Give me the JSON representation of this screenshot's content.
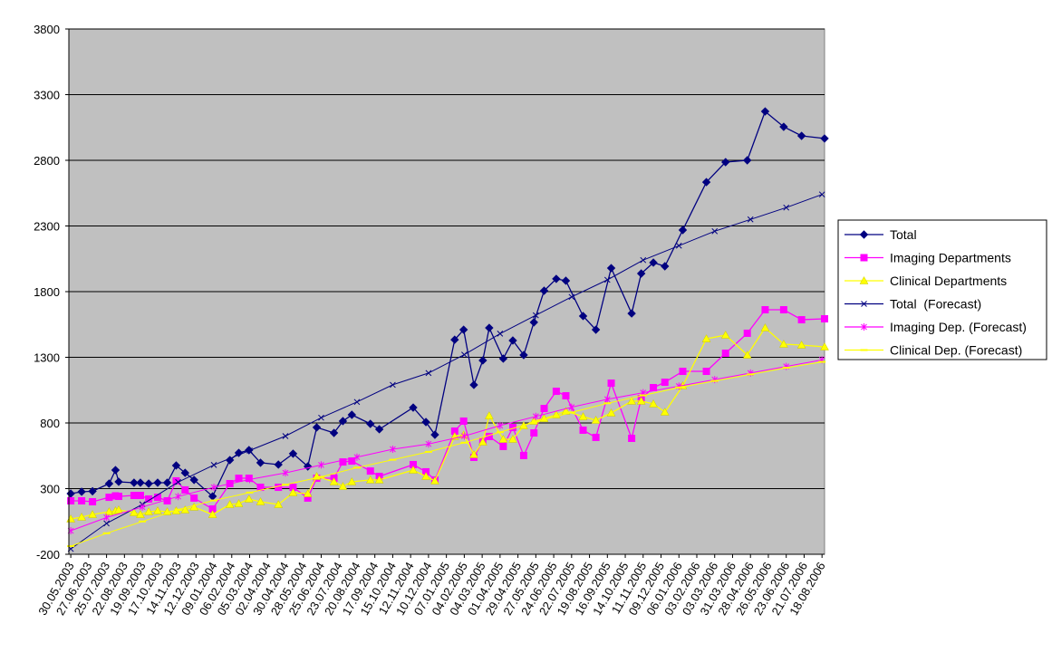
{
  "chart_data": {
    "type": "line",
    "xlim": [
      "27.05.2003",
      "22.08.2006"
    ],
    "ylim": [
      -200,
      3800
    ],
    "yticks": [
      -200,
      300,
      800,
      1300,
      1800,
      2300,
      2800,
      3300,
      3800
    ],
    "xticks": [
      "30.05.2003",
      "27.06.2003",
      "25.07.2003",
      "22.08.2003",
      "19.09.2003",
      "17.10.2003",
      "14.11.2003",
      "12.12.2003",
      "09.01.2004",
      "06.02.2004",
      "05.03.2004",
      "02.04.2004",
      "30.04.2004",
      "28.05.2004",
      "25.06.2004",
      "23.07.2004",
      "20.08.2004",
      "17.09.2004",
      "15.10.2004",
      "12.11.2004",
      "10.12.2004",
      "07.01.2005",
      "04.02.2005",
      "04.03.2005",
      "01.04.2005",
      "29.04.2005",
      "27.05.2005",
      "24.06.2005",
      "22.07.2005",
      "19.08.2005",
      "16.09.2005",
      "14.10.2005",
      "11.11.2005",
      "09.12.2005",
      "06.01.2006",
      "03.02.2006",
      "03.03.2006",
      "31.03.2006",
      "28.04.2006",
      "26.05.2006",
      "23.06.2006",
      "21.07.2006",
      "18.08.2006"
    ],
    "grid": true,
    "legend": "right",
    "x": [
      "30.05.2003",
      "16.06.2003",
      "03.07.2003",
      "29.07.2003",
      "08.08.2003",
      "13.08.2003",
      "06.09.2003",
      "16.09.2003",
      "29.09.2003",
      "13.10.2003",
      "28.10.2003",
      "11.11.2003",
      "25.11.2003",
      "09.12.2003",
      "07.01.2004",
      "03.02.2004",
      "17.02.2004",
      "04.03.2004",
      "22.03.2004",
      "19.04.2004",
      "12.05.2004",
      "04.06.2004",
      "18.06.2004",
      "15.07.2004",
      "29.07.2004",
      "12.08.2004",
      "10.09.2004",
      "24.09.2004",
      "16.11.2004",
      "06.12.2004",
      "20.12.2004",
      "20.01.2005",
      "03.02.2005",
      "19.02.2005",
      "05.03.2005",
      "15.03.2005",
      "06.04.2005",
      "21.04.2005",
      "08.05.2005",
      "24.05.2005",
      "09.06.2005",
      "28.06.2005",
      "13.07.2005",
      "09.08.2005",
      "29.08.2005",
      "22.09.2005",
      "24.10.2005",
      "08.11.2005",
      "27.11.2005",
      "15.12.2005",
      "12.01.2006",
      "18.02.2006",
      "20.03.2006",
      "23.04.2006",
      "21.05.2006",
      "19.06.2006",
      "17.07.2006",
      "22.08.2006"
    ],
    "series": [
      {
        "name": "Total",
        "color": "#000080",
        "marker": "diamond",
        "values": [
          262,
          276,
          280,
          338,
          441,
          352,
          345,
          345,
          338,
          345,
          345,
          476,
          420,
          366,
          241,
          517,
          572,
          593,
          497,
          483,
          566,
          469,
          766,
          724,
          814,
          862,
          793,
          752,
          917,
          807,
          710,
          1434,
          1510,
          1090,
          1276,
          1524,
          1290,
          1428,
          1317,
          1566,
          1807,
          1897,
          1883,
          1614,
          1510,
          1979,
          1634,
          1938,
          2021,
          1993,
          2269,
          2634,
          2786,
          2800,
          3172,
          3055,
          2986,
          2966
        ]
      },
      {
        "name": "Imaging Departments",
        "color": "#ff00ff",
        "marker": "square",
        "values": [
          207,
          207,
          200,
          234,
          245,
          241,
          248,
          248,
          221,
          234,
          207,
          359,
          290,
          228,
          145,
          338,
          379,
          379,
          310,
          310,
          310,
          228,
          379,
          379,
          503,
          510,
          434,
          393,
          483,
          428,
          366,
          738,
          814,
          538,
          662,
          697,
          621,
          766,
          552,
          724,
          910,
          1041,
          1007,
          745,
          690,
          1103,
          683,
          986,
          1069,
          1110,
          1193,
          1193,
          1331,
          1483,
          1662,
          1662,
          1586,
          1593
        ]
      },
      {
        "name": "Clinical Departments",
        "color": "#ffff00",
        "marker": "triangle",
        "values": [
          69,
          83,
          103,
          124,
          131,
          138,
          117,
          103,
          124,
          131,
          124,
          131,
          138,
          159,
          103,
          179,
          186,
          221,
          200,
          179,
          269,
          262,
          393,
          352,
          317,
          352,
          366,
          366,
          441,
          393,
          359,
          697,
          710,
          559,
          655,
          855,
          676,
          676,
          779,
          814,
          834,
          862,
          890,
          848,
          821,
          876,
          966,
          966,
          945,
          883,
          1083,
          1441,
          1469,
          1317,
          1524,
          1400,
          1393,
          1379
        ]
      },
      {
        "name": "Total  (Forecast)",
        "color": "#000080",
        "marker": "x",
        "x": [
          "30.05.2003",
          "25.07.2003",
          "19.09.2003",
          "14.11.2003",
          "09.01.2004",
          "05.03.2004",
          "30.04.2004",
          "25.06.2004",
          "20.08.2004",
          "15.10.2004",
          "10.12.2004",
          "04.02.2005",
          "01.04.2005",
          "27.05.2005",
          "22.07.2005",
          "16.09.2005",
          "11.11.2005",
          "06.01.2006",
          "03.03.2006",
          "28.04.2006",
          "23.06.2006",
          "18.08.2006"
        ],
        "values": [
          -159,
          35,
          180,
          350,
          480,
          590,
          700,
          840,
          960,
          1090,
          1180,
          1320,
          1480,
          1620,
          1760,
          1890,
          2040,
          2150,
          2260,
          2350,
          2440,
          2540
        ]
      },
      {
        "name": "Imaging Dep. (Forecast)",
        "color": "#ff00ff",
        "marker": "star",
        "x": [
          "30.05.2003",
          "25.07.2003",
          "19.09.2003",
          "14.11.2003",
          "09.01.2004",
          "05.03.2004",
          "30.04.2004",
          "25.06.2004",
          "20.08.2004",
          "15.10.2004",
          "10.12.2004",
          "04.02.2005",
          "01.04.2005",
          "27.05.2005",
          "22.07.2005",
          "16.09.2005",
          "11.11.2005",
          "06.01.2006",
          "03.03.2006",
          "28.04.2006",
          "23.06.2006",
          "18.08.2006"
        ],
        "values": [
          -21,
          80,
          160,
          240,
          310,
          370,
          420,
          480,
          540,
          600,
          640,
          700,
          780,
          850,
          920,
          980,
          1030,
          1080,
          1130,
          1180,
          1230,
          1280
        ]
      },
      {
        "name": "Clinical Dep. (Forecast)",
        "color": "#ffff00",
        "marker": "dash",
        "x": [
          "30.05.2003",
          "25.07.2003",
          "19.09.2003",
          "14.11.2003",
          "09.01.2004",
          "05.03.2004",
          "30.04.2004",
          "25.06.2004",
          "20.08.2004",
          "15.10.2004",
          "10.12.2004",
          "04.02.2005",
          "01.04.2005",
          "27.05.2005",
          "22.07.2005",
          "16.09.2005",
          "11.11.2005",
          "06.01.2006",
          "03.03.2006",
          "28.04.2006",
          "23.06.2006",
          "18.08.2006"
        ],
        "values": [
          -138,
          -40,
          50,
          140,
          210,
          270,
          330,
          390,
          460,
          520,
          580,
          650,
          730,
          810,
          880,
          950,
          1010,
          1070,
          1120,
          1170,
          1220,
          1265
        ]
      }
    ]
  }
}
